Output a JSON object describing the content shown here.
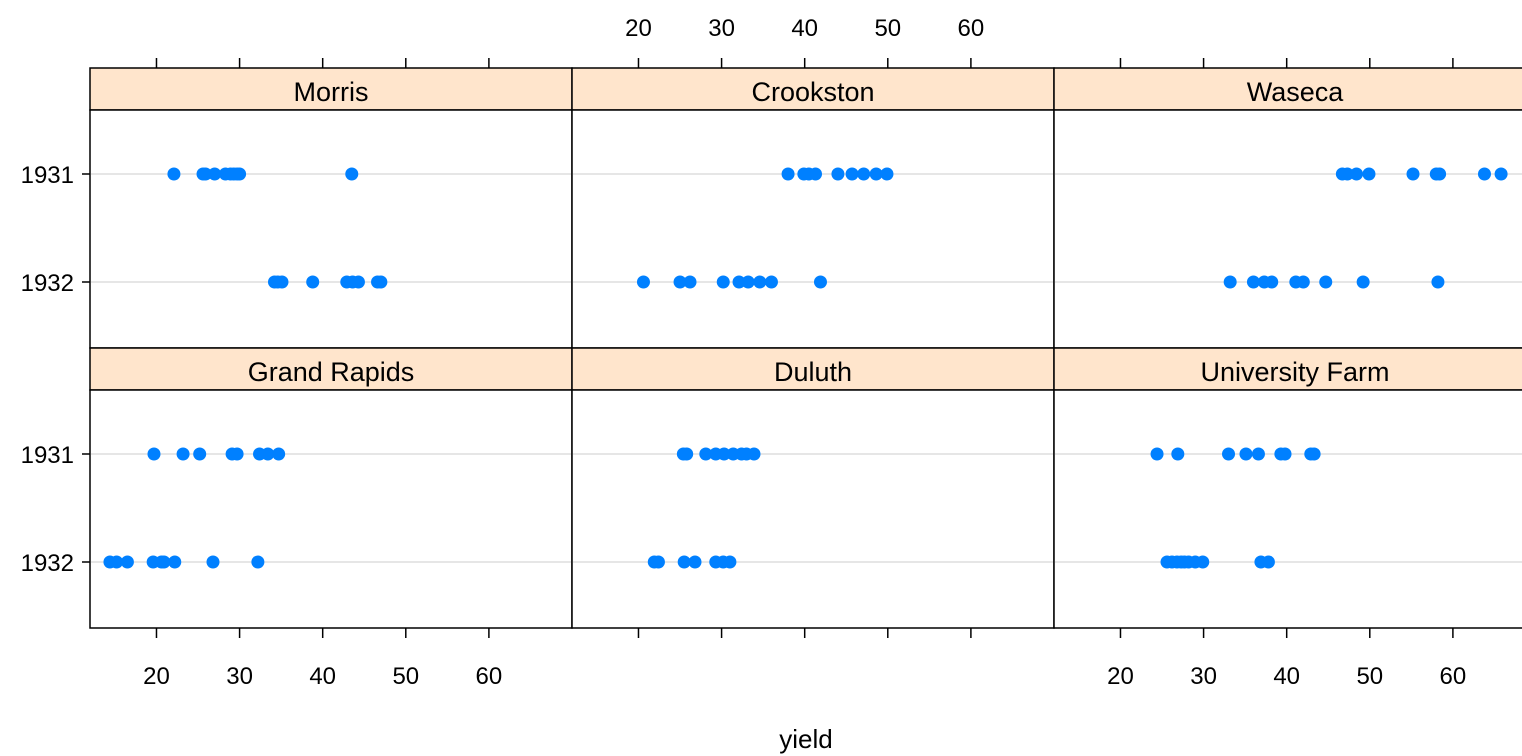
{
  "chart_data": {
    "type": "scatter",
    "xlabel": "yield",
    "xlim": [
      12,
      70
    ],
    "x_ticks": [
      "20",
      "30",
      "40",
      "50",
      "60"
    ],
    "y_categories": [
      "1931",
      "1932"
    ],
    "grid": true,
    "colors": {
      "point": "#0080ff",
      "strip": "#ffe5cc",
      "gridline": "#e6e6e6",
      "border": "#000000"
    },
    "panels": [
      {
        "site": "Morris",
        "series": [
          {
            "year": "1931",
            "x": [
              22.1,
              25.6,
              25.9,
              27.0,
              28.3,
              28.9,
              29.3,
              29.7,
              30.0,
              43.5
            ]
          },
          {
            "year": "1932",
            "x": [
              34.2,
              34.6,
              35.1,
              38.8,
              42.9,
              43.6,
              44.3,
              46.6,
              47.0
            ]
          }
        ]
      },
      {
        "site": "Crookston",
        "series": [
          {
            "year": "1931",
            "x": [
              38.0,
              39.9,
              40.5,
              41.3,
              44.0,
              45.7,
              47.1,
              48.6,
              49.9
            ]
          },
          {
            "year": "1932",
            "x": [
              20.6,
              25.0,
              26.2,
              30.2,
              32.1,
              33.2,
              34.6,
              36.0,
              41.9
            ]
          }
        ]
      },
      {
        "site": "Waseca",
        "series": [
          {
            "year": "1931",
            "x": [
              46.7,
              47.3,
              48.4,
              49.9,
              55.2,
              58.0,
              58.4,
              63.8,
              65.8
            ]
          },
          {
            "year": "1932",
            "x": [
              33.2,
              36.0,
              37.3,
              38.2,
              41.1,
              42.0,
              44.7,
              49.2,
              58.2
            ]
          }
        ]
      },
      {
        "site": "Grand Rapids",
        "series": [
          {
            "year": "1931",
            "x": [
              19.7,
              23.2,
              25.2,
              29.1,
              29.7,
              32.4,
              33.4,
              34.7
            ]
          },
          {
            "year": "1932",
            "x": [
              14.4,
              15.2,
              16.5,
              19.6,
              20.6,
              20.9,
              22.2,
              26.8,
              32.2
            ]
          }
        ]
      },
      {
        "site": "Duluth",
        "series": [
          {
            "year": "1931",
            "x": [
              25.4,
              25.8,
              28.1,
              29.3,
              30.3,
              31.4,
              32.4,
              33.0,
              33.9
            ]
          },
          {
            "year": "1932",
            "x": [
              21.9,
              22.4,
              25.5,
              26.8,
              29.3,
              30.2,
              31.0
            ]
          }
        ]
      },
      {
        "site": "University Farm",
        "series": [
          {
            "year": "1931",
            "x": [
              24.4,
              26.9,
              33.0,
              35.1,
              36.6,
              39.3,
              39.8,
              42.9,
              43.3
            ]
          },
          {
            "year": "1932",
            "x": [
              25.6,
              26.2,
              26.8,
              27.3,
              27.7,
              28.2,
              29.0,
              29.9,
              36.9,
              37.8
            ]
          }
        ]
      }
    ]
  }
}
